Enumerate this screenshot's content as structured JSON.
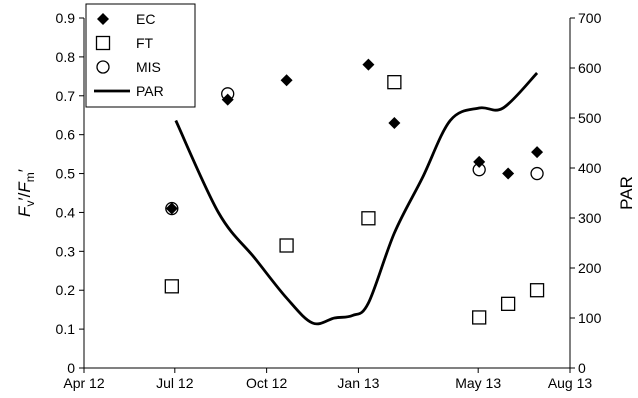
{
  "chart_data": {
    "type": "scatter",
    "x_axis": {
      "ticks": [
        "2012-04-01",
        "2012-07-01",
        "2012-10-01",
        "2013-01-01",
        "2013-05-01",
        "2013-08-01"
      ],
      "tick_labels": [
        "Apr 12",
        "Jul 12",
        "Oct 12",
        "Jan 13",
        "May 13",
        "Aug 13"
      ],
      "range": [
        "2012-04-01",
        "2013-08-01"
      ]
    },
    "y_left": {
      "label_parts": [
        {
          "t": "F",
          "italic": true
        },
        {
          "t": "v",
          "sub": true
        },
        {
          "t": "′/",
          "italic": false
        },
        {
          "t": "F",
          "italic": true
        },
        {
          "t": "m",
          "sub": true
        },
        {
          "t": "′",
          "italic": false
        }
      ],
      "range": [
        0,
        0.9
      ],
      "ticks": [
        0,
        0.1,
        0.2,
        0.3,
        0.4,
        0.5,
        0.6,
        0.7,
        0.8,
        0.9
      ]
    },
    "y_right": {
      "label": "PAR",
      "range": [
        0,
        700
      ],
      "ticks": [
        0,
        100,
        200,
        300,
        400,
        500,
        600,
        700
      ]
    },
    "legend": {
      "position": "top-left",
      "entries": [
        {
          "label": "EC",
          "marker": "diamond"
        },
        {
          "label": "FT",
          "marker": "square-open"
        },
        {
          "label": "MIS",
          "marker": "circle-open"
        },
        {
          "label": "PAR",
          "marker": "line"
        }
      ]
    },
    "series": [
      {
        "name": "EC",
        "marker": "diamond",
        "axis": "left",
        "points": [
          {
            "x": "2012-06-28",
            "y": 0.41
          },
          {
            "x": "2012-08-23",
            "y": 0.69
          },
          {
            "x": "2012-10-21",
            "y": 0.74
          },
          {
            "x": "2013-01-11",
            "y": 0.78
          },
          {
            "x": "2013-02-06",
            "y": 0.63
          },
          {
            "x": "2013-05-02",
            "y": 0.53
          },
          {
            "x": "2013-05-31",
            "y": 0.5
          },
          {
            "x": "2013-06-29",
            "y": 0.555
          }
        ]
      },
      {
        "name": "FT",
        "marker": "square-open",
        "axis": "left",
        "points": [
          {
            "x": "2012-06-28",
            "y": 0.21
          },
          {
            "x": "2012-10-21",
            "y": 0.315
          },
          {
            "x": "2013-01-11",
            "y": 0.385
          },
          {
            "x": "2013-02-06",
            "y": 0.735
          },
          {
            "x": "2013-05-02",
            "y": 0.13
          },
          {
            "x": "2013-05-31",
            "y": 0.165
          },
          {
            "x": "2013-06-29",
            "y": 0.2
          }
        ]
      },
      {
        "name": "MIS",
        "marker": "circle-open",
        "axis": "left",
        "points": [
          {
            "x": "2012-06-28",
            "y": 0.41
          },
          {
            "x": "2012-08-23",
            "y": 0.705
          },
          {
            "x": "2013-05-02",
            "y": 0.51
          },
          {
            "x": "2013-06-29",
            "y": 0.5
          }
        ]
      },
      {
        "name": "PAR",
        "type": "line",
        "axis": "right",
        "points": [
          {
            "x": "2012-07-02",
            "y": 495
          },
          {
            "x": "2012-08-14",
            "y": 310
          },
          {
            "x": "2012-09-19",
            "y": 220
          },
          {
            "x": "2012-10-21",
            "y": 140
          },
          {
            "x": "2012-11-16",
            "y": 90
          },
          {
            "x": "2012-12-08",
            "y": 100
          },
          {
            "x": "2012-12-26",
            "y": 105
          },
          {
            "x": "2013-01-11",
            "y": 130
          },
          {
            "x": "2013-02-06",
            "y": 270
          },
          {
            "x": "2013-03-06",
            "y": 380
          },
          {
            "x": "2013-04-03",
            "y": 495
          },
          {
            "x": "2013-05-02",
            "y": 520
          },
          {
            "x": "2013-05-26",
            "y": 520
          },
          {
            "x": "2013-06-29",
            "y": 590
          }
        ]
      }
    ]
  }
}
